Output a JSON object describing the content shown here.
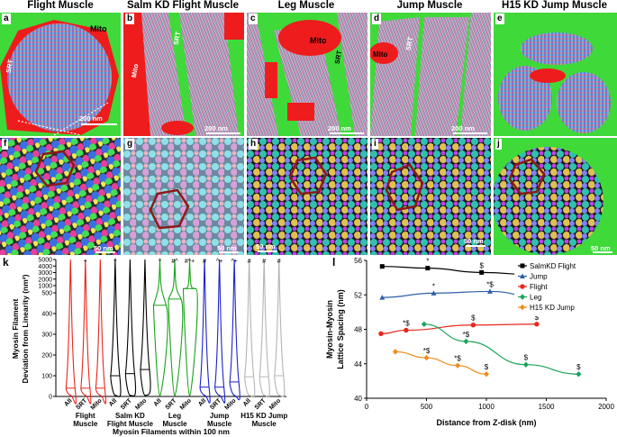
{
  "titles": [
    "Flight Muscle",
    "Salm KD Flight Muscle",
    "Leg Muscle",
    "Jump Muscle",
    "H15 KD Jump Muscle"
  ],
  "top_row": [
    {
      "label": "a",
      "mito": "Mito",
      "srt": "SRT",
      "scale": "200 nm"
    },
    {
      "label": "b",
      "mito": "Mito",
      "srt": "SRT",
      "scale": "200 nm"
    },
    {
      "label": "c",
      "mito": "Mito",
      "srt": "SRT",
      "scale": "200 nm"
    },
    {
      "label": "d",
      "mito": "Mito",
      "srt": "SRT",
      "scale": "200 nm"
    },
    {
      "label": "e",
      "mito": "",
      "srt": "",
      "scale": ""
    }
  ],
  "mid_row": [
    {
      "label": "f",
      "scale": "50 nm"
    },
    {
      "label": "g",
      "scale": "50 nm"
    },
    {
      "label": "h",
      "scale": "50 nm"
    },
    {
      "label": "i",
      "scale": "50 nm"
    },
    {
      "label": "j",
      "scale": "50 nm"
    }
  ],
  "colors": {
    "flight": "#e8271d",
    "salm": "#000000",
    "leg": "#1aa21a",
    "jump": "#1c22c8",
    "h15": "#b5b5b5",
    "mito_red": "#ee1c1c",
    "srt_green": "#44dd33",
    "hex": "#8b1a1a"
  },
  "panel_k": {
    "label": "k",
    "ylabel_line1": "Myosin  Filament",
    "ylabel_line2": "Deviation from  Linearity (nm²)",
    "yticks": [
      "5000",
      "4000",
      "3000",
      "2000",
      "1000",
      "500",
      "400",
      "300",
      "200",
      "100",
      "0"
    ],
    "xtick_labels": [
      "All",
      "SRT",
      "Mito",
      "All",
      "SRT",
      "Mito",
      "All",
      "SRT",
      "Mito",
      "All",
      "SRT",
      "Mito",
      "All",
      "SRT",
      "Mito"
    ],
    "group_labels": [
      [
        "Flight",
        "Muscle"
      ],
      [
        "Salm KD",
        "Flight Muscle"
      ],
      [
        "Leg",
        "Muscle"
      ],
      [
        "Jump",
        "Muscle"
      ],
      [
        "H15 KD Jump",
        "Muscle"
      ]
    ],
    "annotations": [
      "",
      "+",
      "",
      "^",
      "",
      "",
      "^",
      "#^",
      "#^+",
      "#",
      "^+",
      "^+",
      "#",
      "#",
      "#"
    ],
    "medians": [
      40,
      40,
      40,
      100,
      110,
      130,
      440,
      470,
      540,
      45,
      45,
      70,
      95,
      95,
      100
    ],
    "xlabel_line1": "Myosin Filaments within 100 nm",
    "xlabel_line2": "of Muscle  Organelles"
  },
  "chart_data": {
    "type": "line",
    "label": "l",
    "xlabel": "Distance from Z-disk (nm)",
    "ylabel": "Myosin-Myosin Lattice Spacing (nm)",
    "xlim": [
      0,
      2000
    ],
    "ylim": [
      40,
      56
    ],
    "xticks": [
      0,
      500,
      1000,
      1500,
      2000
    ],
    "yticks": [
      40,
      44,
      48,
      52,
      56
    ],
    "legend_position": "top-right",
    "series": [
      {
        "name": "SalmKD Flight",
        "color": "#000000",
        "marker": "square",
        "x": [
          130,
          510,
          960,
          1440
        ],
        "y": [
          55.3,
          55.1,
          54.6,
          54.3
        ],
        "annotations": [
          "",
          "*",
          "$",
          "$"
        ]
      },
      {
        "name": "Jump",
        "color": "#2e5fa8",
        "marker": "triangle",
        "x": [
          130,
          560,
          1030,
          1540
        ],
        "y": [
          51.7,
          52.2,
          52.4,
          51.3
        ],
        "annotations": [
          "",
          "*",
          "*$",
          "$"
        ]
      },
      {
        "name": "Flight",
        "color": "#e8271d",
        "marker": "circle",
        "x": [
          120,
          330,
          890,
          1420
        ],
        "y": [
          47.5,
          47.9,
          48.5,
          48.6
        ],
        "annotations": [
          "",
          "*$",
          "$",
          "$"
        ]
      },
      {
        "name": "Leg",
        "color": "#1aa25a",
        "marker": "diamond",
        "x": [
          480,
          830,
          1330,
          1770
        ],
        "y": [
          48.6,
          46.6,
          43.9,
          42.8
        ],
        "annotations": [
          "",
          "*$",
          "$",
          "$"
        ]
      },
      {
        "name": "H15 KD Jump",
        "color": "#f08c1c",
        "marker": "diamond",
        "x": [
          240,
          500,
          760,
          1000
        ],
        "y": [
          45.4,
          44.7,
          43.8,
          42.8
        ],
        "annotations": [
          "",
          "*$",
          "*$",
          "$"
        ]
      }
    ]
  }
}
